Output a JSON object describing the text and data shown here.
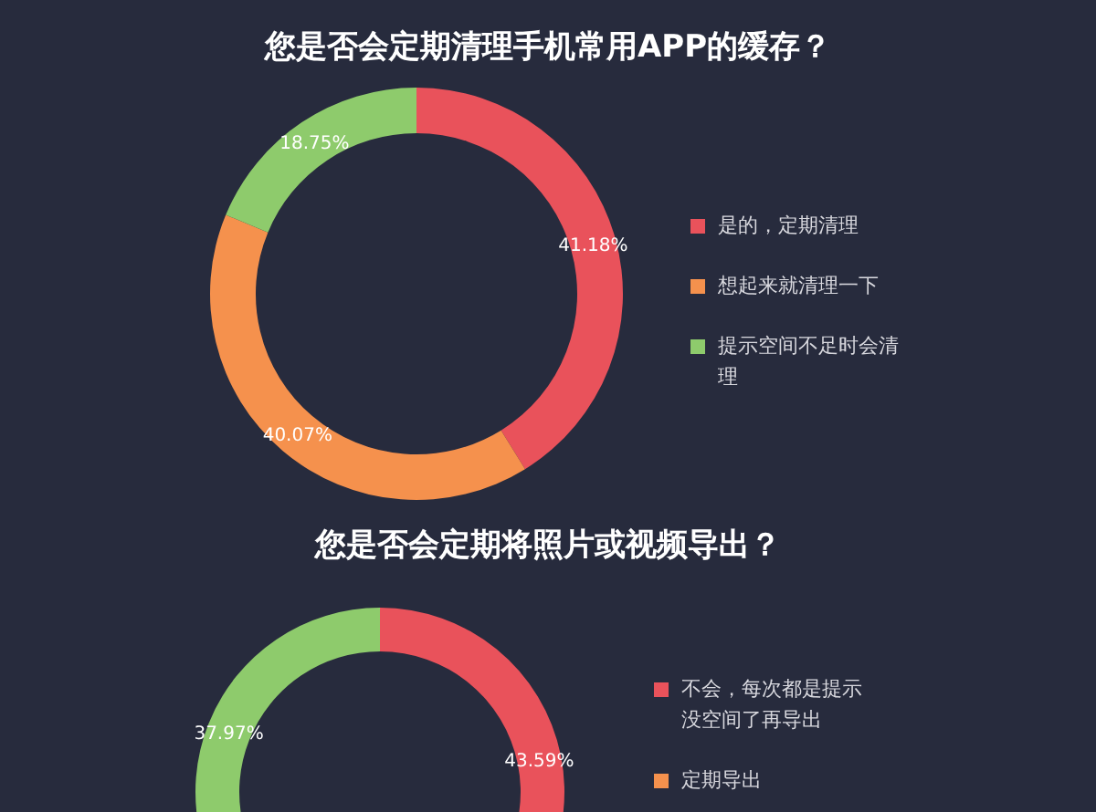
{
  "chart_data": [
    {
      "type": "donut",
      "title": "您是否会定期清理手机常用APP的缓存？",
      "categories": [
        "是的，定期清理",
        "想起来就清理一下",
        "提示空间不足时会清理"
      ],
      "values": [
        41.18,
        40.07,
        18.75
      ],
      "colors": [
        "#e9525b",
        "#f5914d",
        "#8ecb6c"
      ],
      "value_labels": [
        "41.18%",
        "40.07%",
        "18.75%"
      ],
      "legend": "right"
    },
    {
      "type": "donut",
      "title": "您是否会定期将照片或视频导出？",
      "categories": [
        "不会，每次都是提示没空间了再导出",
        "定期导出",
        null
      ],
      "values": [
        43.59,
        null,
        37.97
      ],
      "colors": [
        "#e9525b",
        "#f5914d",
        "#8ecb6c"
      ],
      "value_labels": [
        "43.59%",
        null,
        "37.97%"
      ],
      "legend": "right"
    }
  ]
}
